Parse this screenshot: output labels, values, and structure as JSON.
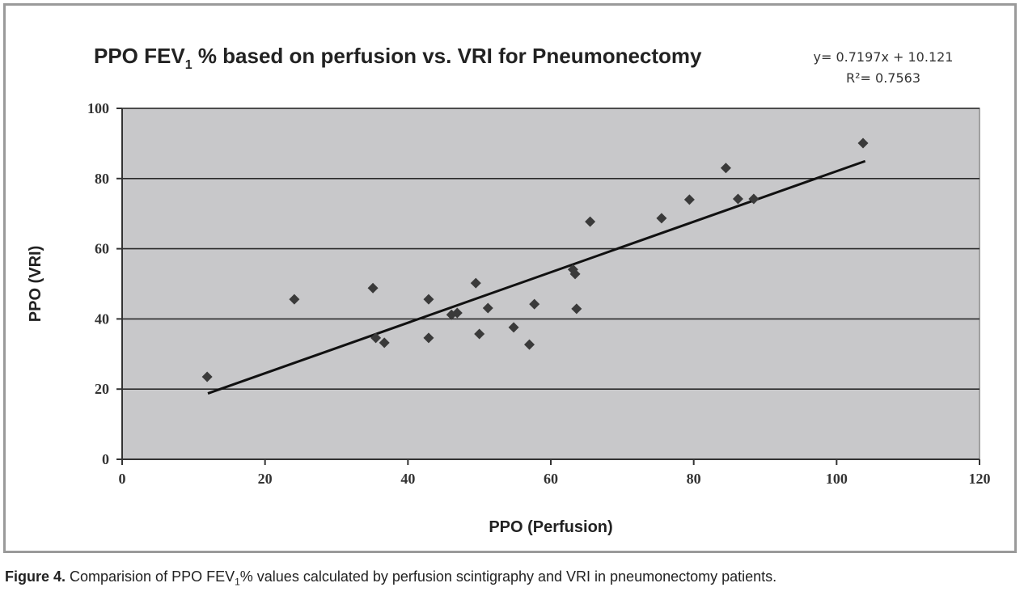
{
  "chart_data": {
    "type": "scatter",
    "title": "PPO FEV",
    "title_subscript": "1",
    "title_rest": " % based on perfusion vs. VRI for Pneumonectomy",
    "xlabel": "PPO (Perfusion)",
    "ylabel": "PPO (VRI)",
    "xlim": [
      0,
      120
    ],
    "ylim": [
      0,
      100
    ],
    "xticks": [
      0,
      20,
      40,
      60,
      80,
      100,
      120
    ],
    "yticks": [
      0,
      20,
      40,
      60,
      80,
      100
    ],
    "grid": "horizontal",
    "plot_background": "#c8c8ca",
    "marker": "diamond",
    "marker_color": "#3a3a3a",
    "trendline": {
      "equation_text": "y= 0.7197x + 10.121",
      "r2_text": "R²= 0.7563",
      "slope": 0.7197,
      "intercept": 10.121,
      "x_range": [
        12,
        104
      ],
      "color": "#111111"
    },
    "points": [
      {
        "x": 11.9,
        "y": 23.5
      },
      {
        "x": 24.1,
        "y": 45.6
      },
      {
        "x": 35.1,
        "y": 48.8
      },
      {
        "x": 35.5,
        "y": 34.6
      },
      {
        "x": 36.7,
        "y": 33.2
      },
      {
        "x": 42.9,
        "y": 45.6
      },
      {
        "x": 42.9,
        "y": 34.6
      },
      {
        "x": 46.1,
        "y": 41.2
      },
      {
        "x": 46.9,
        "y": 41.7
      },
      {
        "x": 49.5,
        "y": 50.2
      },
      {
        "x": 50.0,
        "y": 35.7
      },
      {
        "x": 51.2,
        "y": 43.1
      },
      {
        "x": 54.8,
        "y": 37.6
      },
      {
        "x": 57.0,
        "y": 32.7
      },
      {
        "x": 57.7,
        "y": 44.2
      },
      {
        "x": 63.1,
        "y": 54.1
      },
      {
        "x": 63.4,
        "y": 52.8
      },
      {
        "x": 63.6,
        "y": 42.9
      },
      {
        "x": 65.5,
        "y": 67.7
      },
      {
        "x": 75.5,
        "y": 68.7
      },
      {
        "x": 79.4,
        "y": 74.0
      },
      {
        "x": 84.5,
        "y": 83.0
      },
      {
        "x": 86.2,
        "y": 74.2
      },
      {
        "x": 88.4,
        "y": 74.2
      },
      {
        "x": 103.7,
        "y": 90.1
      }
    ]
  },
  "caption": {
    "label": "Figure 4.",
    "text_before_sub": " Comparision of PPO FEV",
    "subscript": "1",
    "text_after_sub": "% values calculated by perfusion scintigraphy and VRI in pneumonectomy patients."
  }
}
